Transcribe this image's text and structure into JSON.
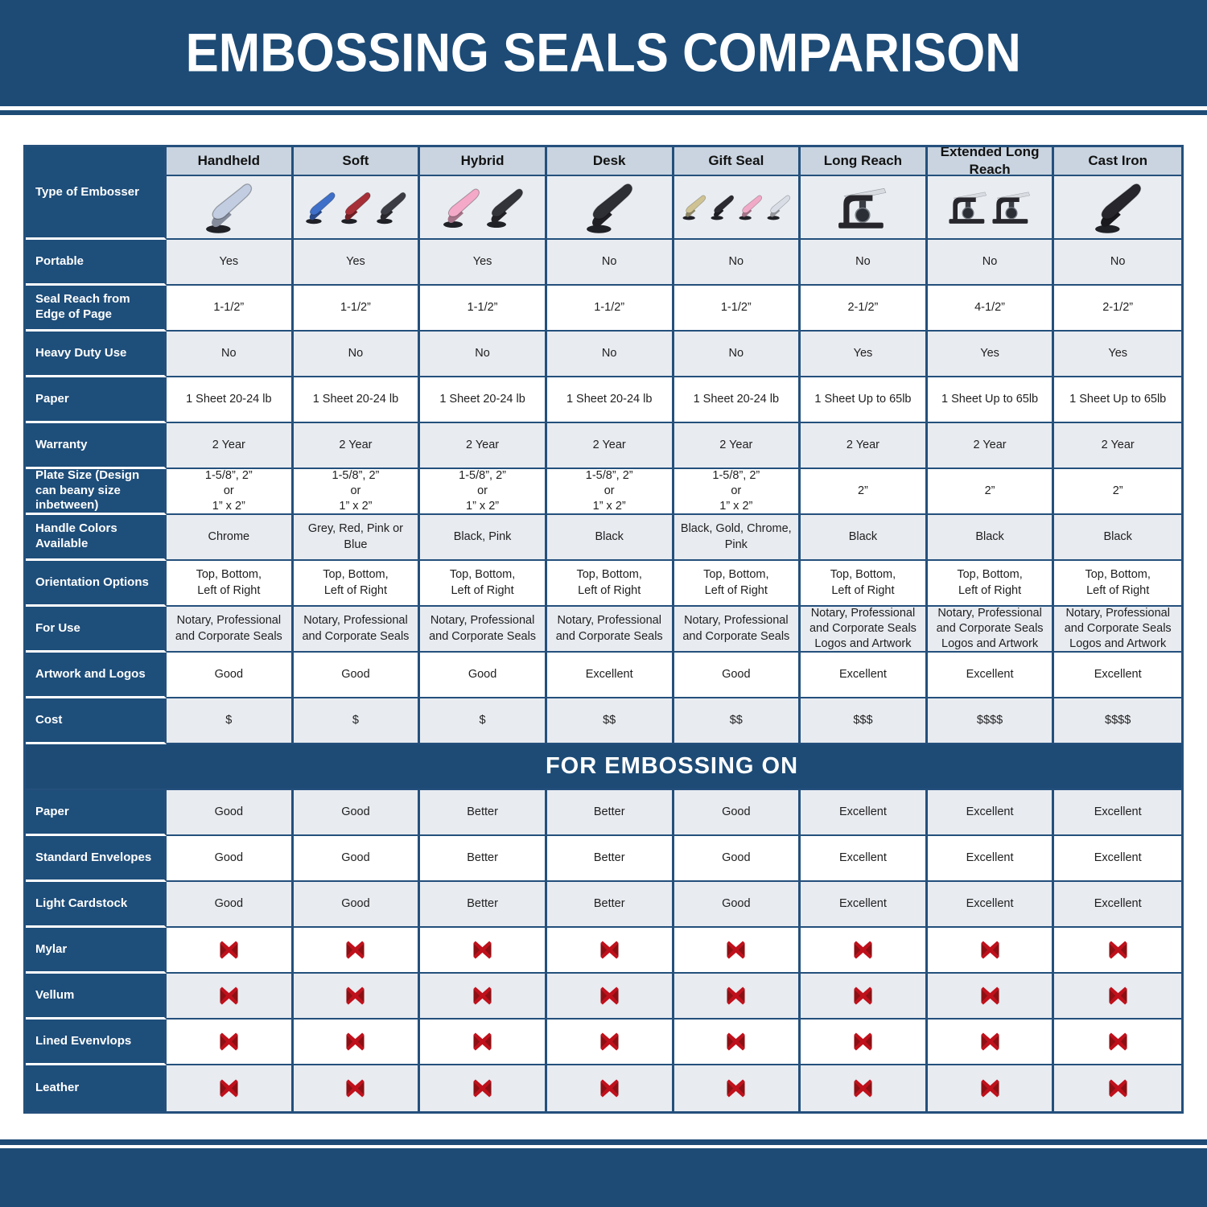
{
  "header": {
    "title": "EMBOSSING SEALS COMPARISON"
  },
  "colors": {
    "navy_band": "#1d4b76",
    "label_cell_navy": "#1e4e7a",
    "grid_border_navy": "#24507c",
    "column_header_bg": "#c9d4e0",
    "image_row_bg": "#e9edf2",
    "cell_grey": "#e8ebf0",
    "cell_white": "#ffffff",
    "red_x_bright": "#c0101b",
    "red_x_dark": "#8d0f13"
  },
  "table": {
    "type_row_label": "Type of Embosser",
    "columns": [
      {
        "label": "Handheld",
        "glyph": "plier",
        "colors": [
          "#c2cde2"
        ]
      },
      {
        "label": "Soft",
        "glyph": "plier",
        "colors": [
          "#3e6fc9",
          "#a62f38",
          "#3c3c44"
        ]
      },
      {
        "label": "Hybrid",
        "glyph": "plier",
        "colors": [
          "#f4a9c8",
          "#33333a"
        ]
      },
      {
        "label": "Desk",
        "glyph": "plier",
        "colors": [
          "#2e2e35"
        ]
      },
      {
        "label": "Gift Seal",
        "glyph": "plier",
        "colors": [
          "#cfc394",
          "#2b2b31",
          "#f0a9c6",
          "#d9dde6"
        ]
      },
      {
        "label": "Long Reach",
        "glyph": "press",
        "colors": [
          "#26262c"
        ]
      },
      {
        "label": "Extended Long Reach",
        "glyph": "press",
        "colors": [
          "#26262c",
          "#26262c"
        ]
      },
      {
        "label": "Cast Iron",
        "glyph": "plier",
        "colors": [
          "#26262c"
        ]
      }
    ],
    "feature_rows": [
      {
        "label": "Portable",
        "values": [
          "Yes",
          "Yes",
          "Yes",
          "No",
          "No",
          "No",
          "No",
          "No"
        ]
      },
      {
        "label": "Seal Reach from Edge of Page",
        "values": [
          "1-1/2”",
          "1-1/2”",
          "1-1/2”",
          "1-1/2”",
          "1-1/2”",
          "2-1/2”",
          "4-1/2”",
          "2-1/2”"
        ]
      },
      {
        "label": "Heavy Duty Use",
        "values": [
          "No",
          "No",
          "No",
          "No",
          "No",
          "Yes",
          "Yes",
          "Yes"
        ]
      },
      {
        "label": "Paper",
        "values": [
          "1 Sheet 20-24 lb",
          "1 Sheet 20-24 lb",
          "1 Sheet 20-24 lb",
          "1 Sheet 20-24 lb",
          "1 Sheet 20-24 lb",
          "1 Sheet Up to 65lb",
          "1 Sheet Up to 65lb",
          "1 Sheet Up to 65lb"
        ]
      },
      {
        "label": "Warranty",
        "values": [
          "2 Year",
          "2 Year",
          "2 Year",
          "2 Year",
          "2 Year",
          "2 Year",
          "2 Year",
          "2 Year"
        ]
      },
      {
        "label": "Plate Size (Design can beany size inbetween)",
        "values": [
          "1-5/8”, 2”\nor\n1” x 2”",
          "1-5/8”, 2”\nor\n1” x 2”",
          "1-5/8”, 2”\nor\n1” x 2”",
          "1-5/8”, 2”\nor\n1” x 2”",
          "1-5/8”, 2”\nor\n1” x 2”",
          "2”",
          "2”",
          "2”"
        ]
      },
      {
        "label": "Handle Colors Available",
        "values": [
          "Chrome",
          "Grey, Red, Pink or Blue",
          "Black, Pink",
          "Black",
          "Black, Gold, Chrome, Pink",
          "Black",
          "Black",
          "Black"
        ]
      },
      {
        "label": "Orientation Options",
        "values": [
          "Top, Bottom,\nLeft of Right",
          "Top, Bottom,\nLeft of Right",
          "Top, Bottom,\nLeft of Right",
          "Top, Bottom,\nLeft of Right",
          "Top, Bottom,\nLeft of Right",
          "Top, Bottom,\nLeft of Right",
          "Top, Bottom,\nLeft of Right",
          "Top, Bottom,\nLeft of Right"
        ]
      },
      {
        "label": "For Use",
        "values": [
          "Notary, Professional\nand Corporate Seals",
          "Notary, Professional\nand Corporate Seals",
          "Notary, Professional\nand Corporate Seals",
          "Notary, Professional\nand Corporate Seals",
          "Notary, Professional\nand Corporate Seals",
          "Notary, Professional\nand Corporate Seals\nLogos and Artwork",
          "Notary, Professional\nand Corporate Seals\nLogos and Artwork",
          "Notary, Professional\nand Corporate Seals\nLogos and Artwork"
        ]
      },
      {
        "label": "Artwork and Logos",
        "values": [
          "Good",
          "Good",
          "Good",
          "Excellent",
          "Good",
          "Excellent",
          "Excellent",
          "Excellent"
        ]
      },
      {
        "label": "Cost",
        "values": [
          "$",
          "$",
          "$",
          "$$",
          "$$",
          "$$$",
          "$$$$",
          "$$$$"
        ]
      }
    ]
  },
  "embossing_section": {
    "title": "FOR EMBOSSING ON",
    "rows": [
      {
        "label": "Paper",
        "values": [
          "Good",
          "Good",
          "Better",
          "Better",
          "Good",
          "Excellent",
          "Excellent",
          "Excellent"
        ]
      },
      {
        "label": "Standard Envelopes",
        "values": [
          "Good",
          "Good",
          "Better",
          "Better",
          "Good",
          "Excellent",
          "Excellent",
          "Excellent"
        ]
      },
      {
        "label": "Light Cardstock",
        "values": [
          "Good",
          "Good",
          "Better",
          "Better",
          "Good",
          "Excellent",
          "Excellent",
          "Excellent"
        ]
      },
      {
        "label": "Mylar",
        "values": [
          "x",
          "x",
          "x",
          "x",
          "x",
          "x",
          "x",
          "x"
        ]
      },
      {
        "label": "Vellum",
        "values": [
          "x",
          "x",
          "x",
          "x",
          "x",
          "x",
          "x",
          "x"
        ]
      },
      {
        "label": "Lined Evenvlops",
        "values": [
          "x",
          "x",
          "x",
          "x",
          "x",
          "x",
          "x",
          "x"
        ]
      },
      {
        "label": "Leather",
        "values": [
          "x",
          "x",
          "x",
          "x",
          "x",
          "x",
          "x",
          "x"
        ]
      }
    ]
  }
}
